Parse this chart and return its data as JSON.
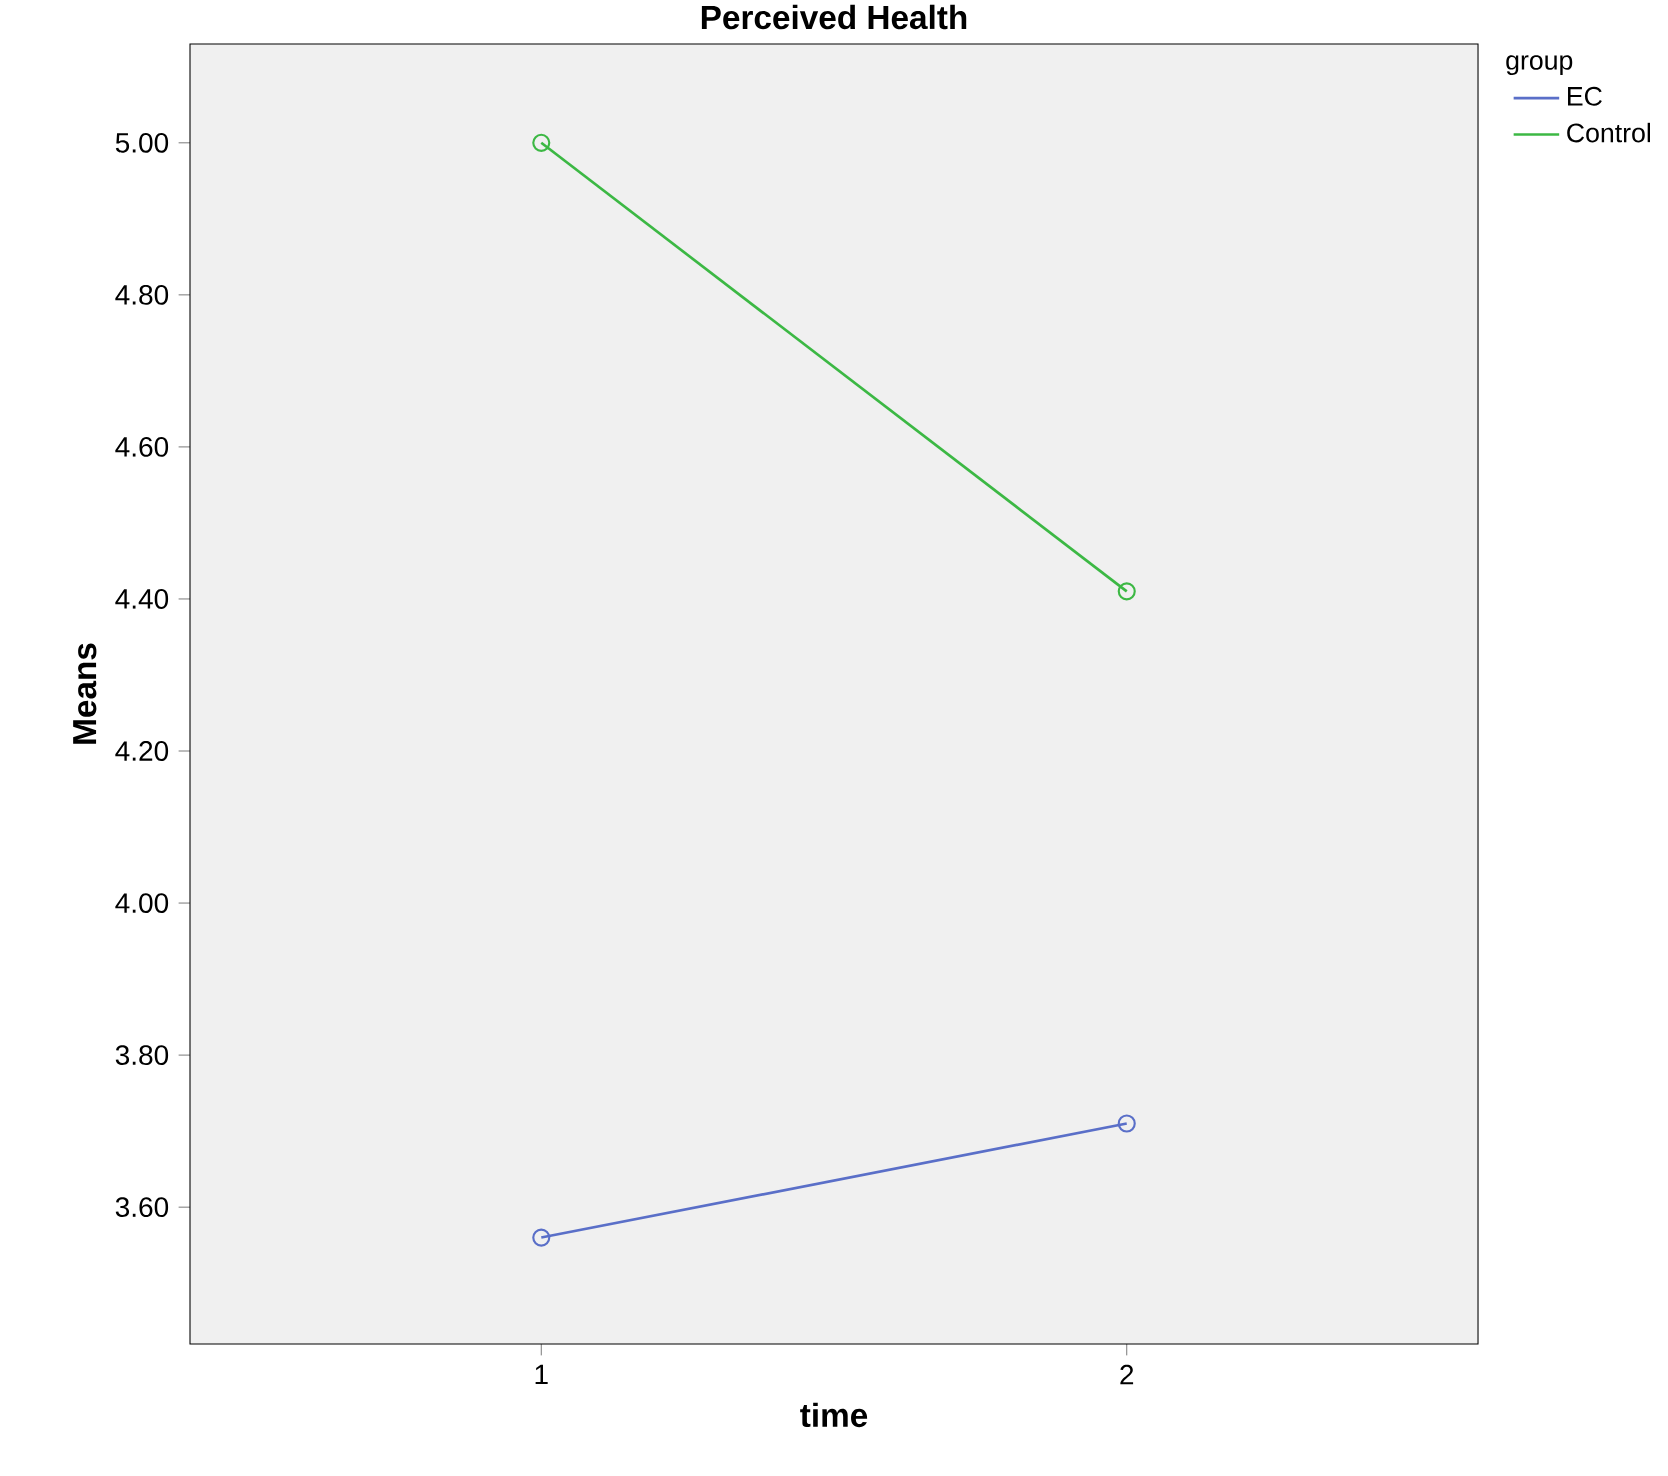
{
  "chart_data": {
    "type": "line",
    "title": "Perceived Health",
    "xlabel": "time",
    "ylabel": "Means",
    "legend_title": "group",
    "x": [
      1,
      2
    ],
    "series": [
      {
        "name": "EC",
        "color": "#5a6fc8",
        "values": [
          3.56,
          3.71
        ]
      },
      {
        "name": "Control",
        "color": "#3cb844",
        "values": [
          5.0,
          4.41
        ]
      }
    ],
    "xlim": [
      0.4,
      2.6
    ],
    "xticks": [
      1,
      2
    ],
    "ylim": [
      3.42,
      5.13
    ],
    "yticks": [
      {
        "value": 3.6,
        "label": "3.60"
      },
      {
        "value": 3.8,
        "label": "3.80"
      },
      {
        "value": 4.0,
        "label": "4.00"
      },
      {
        "value": 4.2,
        "label": "4.20"
      },
      {
        "value": 4.4,
        "label": "4.40"
      },
      {
        "value": 4.6,
        "label": "4.60"
      },
      {
        "value": 4.8,
        "label": "4.80"
      },
      {
        "value": 5.0,
        "label": "5.00"
      }
    ],
    "grid": false,
    "legend": "top right",
    "marker": "circle",
    "line_style": "solid"
  }
}
